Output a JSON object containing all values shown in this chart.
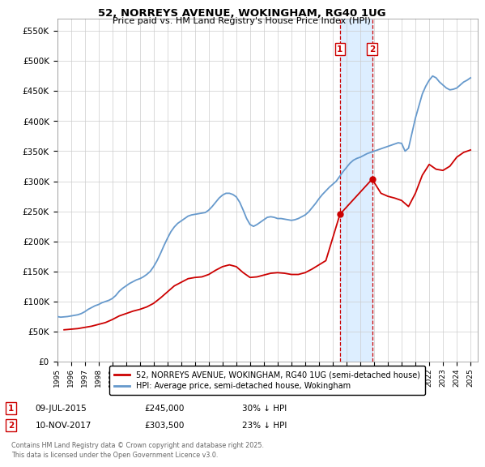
{
  "title": "52, NORREYS AVENUE, WOKINGHAM, RG40 1UG",
  "subtitle": "Price paid vs. HM Land Registry's House Price Index (HPI)",
  "ylim": [
    0,
    570000
  ],
  "yticks": [
    0,
    50000,
    100000,
    150000,
    200000,
    250000,
    300000,
    350000,
    400000,
    450000,
    500000,
    550000
  ],
  "xlim_start": 1995.0,
  "xlim_end": 2025.5,
  "sale1_date": 2015.52,
  "sale1_price": 245000,
  "sale2_date": 2017.86,
  "sale2_price": 303500,
  "hpi_color": "#6699cc",
  "price_color": "#cc0000",
  "shaded_color": "#ddeeff",
  "legend_label_price": "52, NORREYS AVENUE, WOKINGHAM, RG40 1UG (semi-detached house)",
  "legend_label_hpi": "HPI: Average price, semi-detached house, Wokingham",
  "table_entries": [
    {
      "num": "1",
      "date": "09-JUL-2015",
      "price": "£245,000",
      "pct": "30% ↓ HPI"
    },
    {
      "num": "2",
      "date": "10-NOV-2017",
      "price": "£303,500",
      "pct": "23% ↓ HPI"
    }
  ],
  "footer": "Contains HM Land Registry data © Crown copyright and database right 2025.\nThis data is licensed under the Open Government Licence v3.0.",
  "hpi_data_x": [
    1995.0,
    1995.25,
    1995.5,
    1995.75,
    1996.0,
    1996.25,
    1996.5,
    1996.75,
    1997.0,
    1997.25,
    1997.5,
    1997.75,
    1998.0,
    1998.25,
    1998.5,
    1998.75,
    1999.0,
    1999.25,
    1999.5,
    1999.75,
    2000.0,
    2000.25,
    2000.5,
    2000.75,
    2001.0,
    2001.25,
    2001.5,
    2001.75,
    2002.0,
    2002.25,
    2002.5,
    2002.75,
    2003.0,
    2003.25,
    2003.5,
    2003.75,
    2004.0,
    2004.25,
    2004.5,
    2004.75,
    2005.0,
    2005.25,
    2005.5,
    2005.75,
    2006.0,
    2006.25,
    2006.5,
    2006.75,
    2007.0,
    2007.25,
    2007.5,
    2007.75,
    2008.0,
    2008.25,
    2008.5,
    2008.75,
    2009.0,
    2009.25,
    2009.5,
    2009.75,
    2010.0,
    2010.25,
    2010.5,
    2010.75,
    2011.0,
    2011.25,
    2011.5,
    2011.75,
    2012.0,
    2012.25,
    2012.5,
    2012.75,
    2013.0,
    2013.25,
    2013.5,
    2013.75,
    2014.0,
    2014.25,
    2014.5,
    2014.75,
    2015.0,
    2015.25,
    2015.5,
    2015.75,
    2016.0,
    2016.25,
    2016.5,
    2016.75,
    2017.0,
    2017.25,
    2017.5,
    2017.75,
    2018.0,
    2018.25,
    2018.5,
    2018.75,
    2019.0,
    2019.25,
    2019.5,
    2019.75,
    2020.0,
    2020.25,
    2020.5,
    2020.75,
    2021.0,
    2021.25,
    2021.5,
    2021.75,
    2022.0,
    2022.25,
    2022.5,
    2022.75,
    2023.0,
    2023.25,
    2023.5,
    2023.75,
    2024.0,
    2024.25,
    2024.5,
    2024.75,
    2025.0
  ],
  "hpi_data_y": [
    75000,
    74000,
    74500,
    75000,
    76000,
    77000,
    78000,
    80000,
    83000,
    87000,
    90000,
    93000,
    95000,
    98000,
    100000,
    102000,
    105000,
    110000,
    117000,
    122000,
    126000,
    130000,
    133000,
    136000,
    138000,
    141000,
    145000,
    150000,
    158000,
    168000,
    180000,
    193000,
    205000,
    216000,
    224000,
    230000,
    234000,
    238000,
    242000,
    244000,
    245000,
    246000,
    247000,
    248000,
    252000,
    258000,
    265000,
    272000,
    277000,
    280000,
    280000,
    278000,
    274000,
    265000,
    252000,
    238000,
    228000,
    225000,
    228000,
    232000,
    236000,
    240000,
    241000,
    240000,
    238000,
    238000,
    237000,
    236000,
    235000,
    236000,
    238000,
    241000,
    244000,
    249000,
    256000,
    263000,
    271000,
    278000,
    284000,
    290000,
    295000,
    300000,
    308000,
    316000,
    323000,
    330000,
    335000,
    338000,
    340000,
    343000,
    346000,
    348000,
    350000,
    352000,
    354000,
    356000,
    358000,
    360000,
    362000,
    364000,
    363000,
    350000,
    355000,
    380000,
    405000,
    425000,
    445000,
    458000,
    468000,
    475000,
    472000,
    465000,
    460000,
    455000,
    452000,
    453000,
    455000,
    460000,
    465000,
    468000,
    472000
  ],
  "price_data_x": [
    1995.5,
    1996.0,
    1996.5,
    1997.0,
    1997.5,
    1998.0,
    1998.5,
    1999.0,
    1999.5,
    2000.0,
    2000.5,
    2001.0,
    2001.5,
    2002.0,
    2002.5,
    2003.0,
    2003.5,
    2004.0,
    2004.5,
    2005.0,
    2005.5,
    2006.0,
    2006.5,
    2007.0,
    2007.5,
    2008.0,
    2008.5,
    2009.0,
    2009.5,
    2010.0,
    2010.5,
    2011.0,
    2011.5,
    2012.0,
    2012.5,
    2013.0,
    2013.5,
    2014.0,
    2014.5,
    2015.52,
    2017.86,
    2018.5,
    2019.0,
    2019.5,
    2020.0,
    2020.5,
    2021.0,
    2021.5,
    2022.0,
    2022.5,
    2023.0,
    2023.5,
    2024.0,
    2024.5,
    2025.0
  ],
  "price_data_y": [
    53000,
    54000,
    55000,
    57000,
    59000,
    62000,
    65000,
    70000,
    76000,
    80000,
    84000,
    87000,
    91000,
    97000,
    106000,
    116000,
    126000,
    132000,
    138000,
    140000,
    141000,
    145000,
    152000,
    158000,
    161000,
    158000,
    148000,
    140000,
    141000,
    144000,
    147000,
    148000,
    147000,
    145000,
    145000,
    148000,
    154000,
    161000,
    168000,
    245000,
    303500,
    280000,
    275000,
    272000,
    268000,
    258000,
    280000,
    310000,
    328000,
    320000,
    318000,
    325000,
    340000,
    348000,
    352000
  ]
}
